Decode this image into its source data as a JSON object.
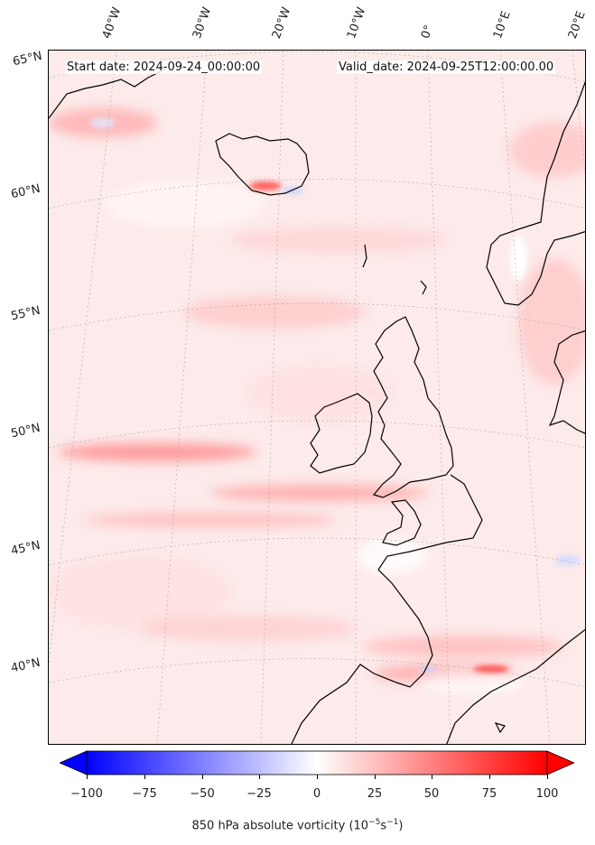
{
  "header": {
    "start_date": "Start date: 2024-09-24_00:00:00",
    "valid_date": "Valid_date: 2024-09-25T12:00:00.00"
  },
  "map": {
    "longitude_labels": [
      "40°W",
      "30°W",
      "20°W",
      "10°W",
      "0°",
      "10°E",
      "20°E"
    ],
    "latitude_labels": [
      "65°N",
      "60°N",
      "55°N",
      "50°N",
      "45°N",
      "40°N"
    ],
    "field": "850 hPa absolute vorticity",
    "colormap": "bwr",
    "background_color": "#fdeeee",
    "coastline_color": "#000000"
  },
  "colorbar": {
    "ticks": [
      "−100",
      "−75",
      "−50",
      "−25",
      "0",
      "25",
      "50",
      "75",
      "100"
    ],
    "min": -100,
    "max": 100,
    "extend": "both",
    "label_text": "850 hPa absolute vorticity (10",
    "label_exp1": "−5",
    "label_mid": "s",
    "label_exp2": "−1",
    "label_end": ")",
    "colors": {
      "low": "#0000ff",
      "mid": "#ffffff",
      "high": "#ff0000"
    }
  }
}
